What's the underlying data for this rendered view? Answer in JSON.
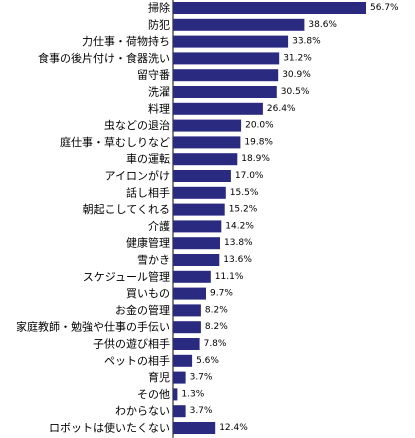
{
  "chart_data": {
    "type": "bar",
    "orientation": "horizontal",
    "categories": [
      "掃除",
      "防犯",
      "力仕事・荷物持ち",
      "食事の後片付け・食器洗い",
      "留守番",
      "洗濯",
      "料理",
      "虫などの退治",
      "庭仕事・草むしりなど",
      "車の運転",
      "アイロンがけ",
      "話し相手",
      "朝起こしてくれる",
      "介護",
      "健康管理",
      "雪かき",
      "スケジュール管理",
      "買いもの",
      "お金の管理",
      "家庭教師・勉強や仕事の手伝い",
      "子供の遊び相手",
      "ペットの相手",
      "育児",
      "その他",
      "わからない",
      "ロボットは使いたくない"
    ],
    "values": [
      56.7,
      38.6,
      33.8,
      31.2,
      30.9,
      30.5,
      26.4,
      20.0,
      19.8,
      18.9,
      17.0,
      15.5,
      15.2,
      14.2,
      13.8,
      13.6,
      11.1,
      9.7,
      8.2,
      8.2,
      7.8,
      5.6,
      3.7,
      1.3,
      3.7,
      12.4
    ],
    "value_labels": [
      "56.7%",
      "38.6%",
      "33.8%",
      "31.2%",
      "30.9%",
      "30.5%",
      "26.4%",
      "20.0%",
      "19.8%",
      "18.9%",
      "17.0%",
      "15.5%",
      "15.2%",
      "14.2%",
      "13.8%",
      "13.6%",
      "11.1%",
      "9.7%",
      "8.2%",
      "8.2%",
      "7.8%",
      "5.6%",
      "3.7%",
      "1.3%",
      "3.7%",
      "12.4%"
    ],
    "xlim": [
      0,
      56.7
    ],
    "grid": false,
    "bar_color": "#2a2a80",
    "title": "",
    "xlabel": "",
    "ylabel": ""
  }
}
